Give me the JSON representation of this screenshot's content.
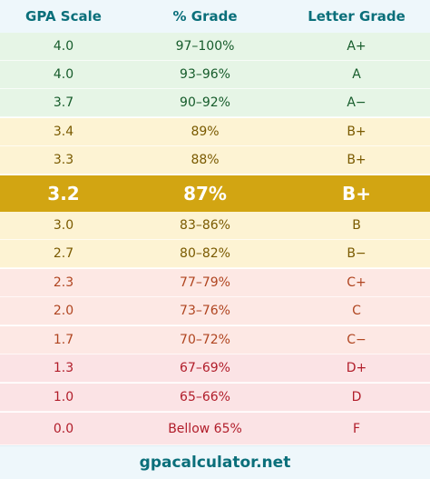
{
  "header": {
    "col1": "GPA Scale",
    "col2": "% Grade",
    "col3": "Letter Grade"
  },
  "rows": [
    {
      "gpa": "4.0",
      "pct": "97–100%",
      "letter": "A+"
    },
    {
      "gpa": "4.0",
      "pct": "93–96%",
      "letter": "A"
    },
    {
      "gpa": "3.7",
      "pct": "90–92%",
      "letter": "A−"
    },
    {
      "gpa": "3.4",
      "pct": "89%",
      "letter": "B+"
    },
    {
      "gpa": "3.3",
      "pct": "88%",
      "letter": "B+"
    },
    {
      "gpa": "3.2",
      "pct": "87%",
      "letter": "B+"
    },
    {
      "gpa": "3.0",
      "pct": "83–86%",
      "letter": "B"
    },
    {
      "gpa": "2.7",
      "pct": "80–82%",
      "letter": "B−"
    },
    {
      "gpa": "2.3",
      "pct": "77–79%",
      "letter": "C+"
    },
    {
      "gpa": "2.0",
      "pct": "73–76%",
      "letter": "C"
    },
    {
      "gpa": "1.7",
      "pct": "70–72%",
      "letter": "C−"
    },
    {
      "gpa": "1.3",
      "pct": "67–69%",
      "letter": "D+"
    },
    {
      "gpa": "1.0",
      "pct": "65–66%",
      "letter": "D"
    },
    {
      "gpa": "0.0",
      "pct": "Bellow 65%",
      "letter": "F"
    }
  ],
  "footer": {
    "site": "gpacalculator.net"
  },
  "colors": {
    "header_text": "#0a6f7a",
    "highlight": "#d2a512",
    "green_band": "#e6f5e6",
    "yellow_band": "#fdf3d3",
    "peach_band": "#fde8e4",
    "red_band": "#fbe3e5"
  }
}
